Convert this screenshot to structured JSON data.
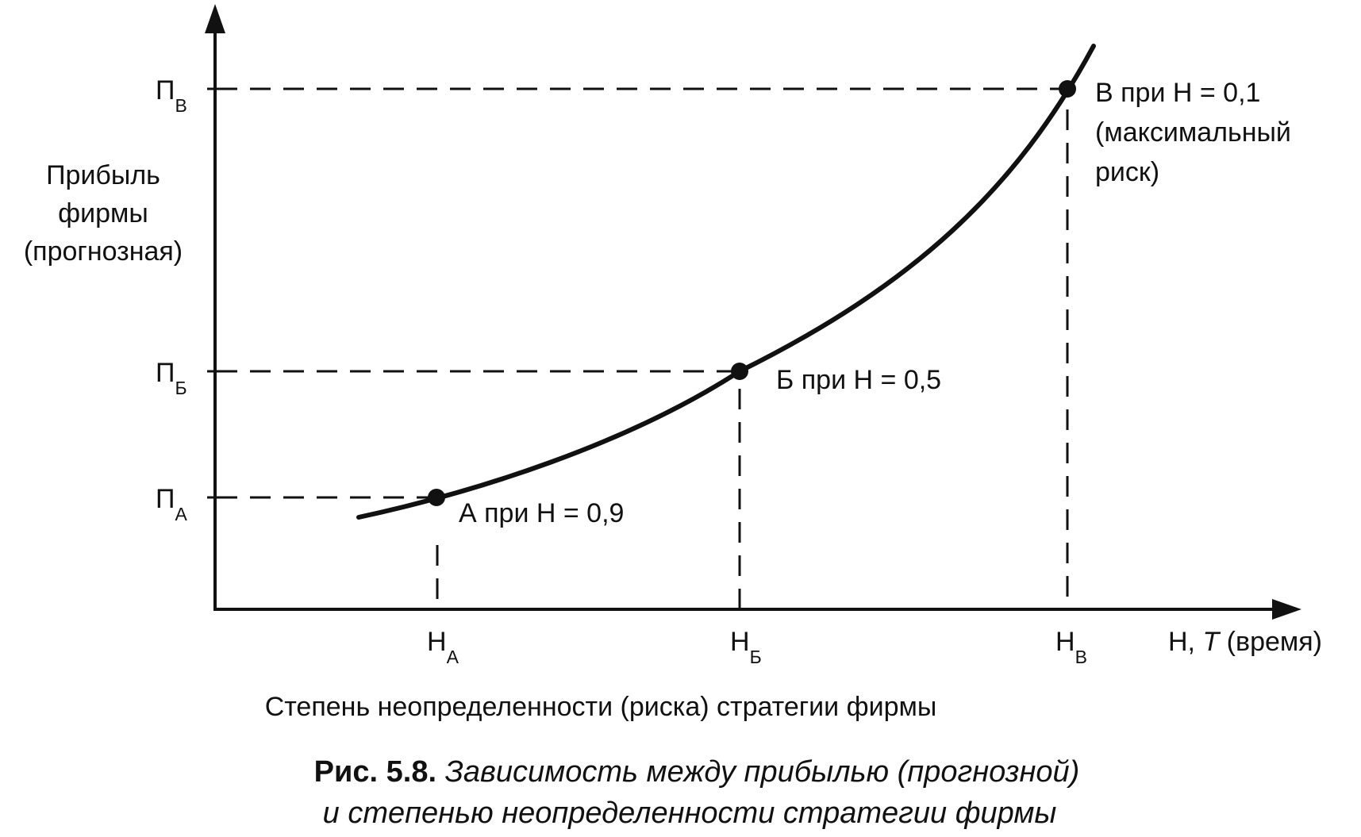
{
  "diagram": {
    "y_axis_label": [
      "Прибыль",
      "фирмы",
      "(прогнозная)"
    ],
    "x_axis_label_prefix": "Н, ",
    "x_axis_label_italic": "T",
    "x_axis_label_suffix": " (время)",
    "x_axis_description": "Степень неопределенности (риска) стратегии фирмы",
    "y_ticks": [
      {
        "main": "П",
        "sub": "А"
      },
      {
        "main": "П",
        "sub": "Б"
      },
      {
        "main": "П",
        "sub": "В"
      }
    ],
    "x_ticks": [
      {
        "main": "Н",
        "sub": "А"
      },
      {
        "main": "Н",
        "sub": "Б"
      },
      {
        "main": "Н",
        "sub": "В"
      }
    ],
    "points": [
      {
        "label": "А при Н = 0,9"
      },
      {
        "label": "Б при Н = 0,5"
      },
      {
        "label_lines": [
          "В при Н = 0,1",
          "(максимальный",
          "риск)"
        ]
      }
    ]
  },
  "caption": {
    "prefix": "Рис. 5.8.",
    "line1": "Зависимость между прибылью (прогнозной)",
    "line2": "и степенью неопределенности стратегии фирмы"
  },
  "colors": {
    "ink": "#111111",
    "background": "#ffffff"
  }
}
